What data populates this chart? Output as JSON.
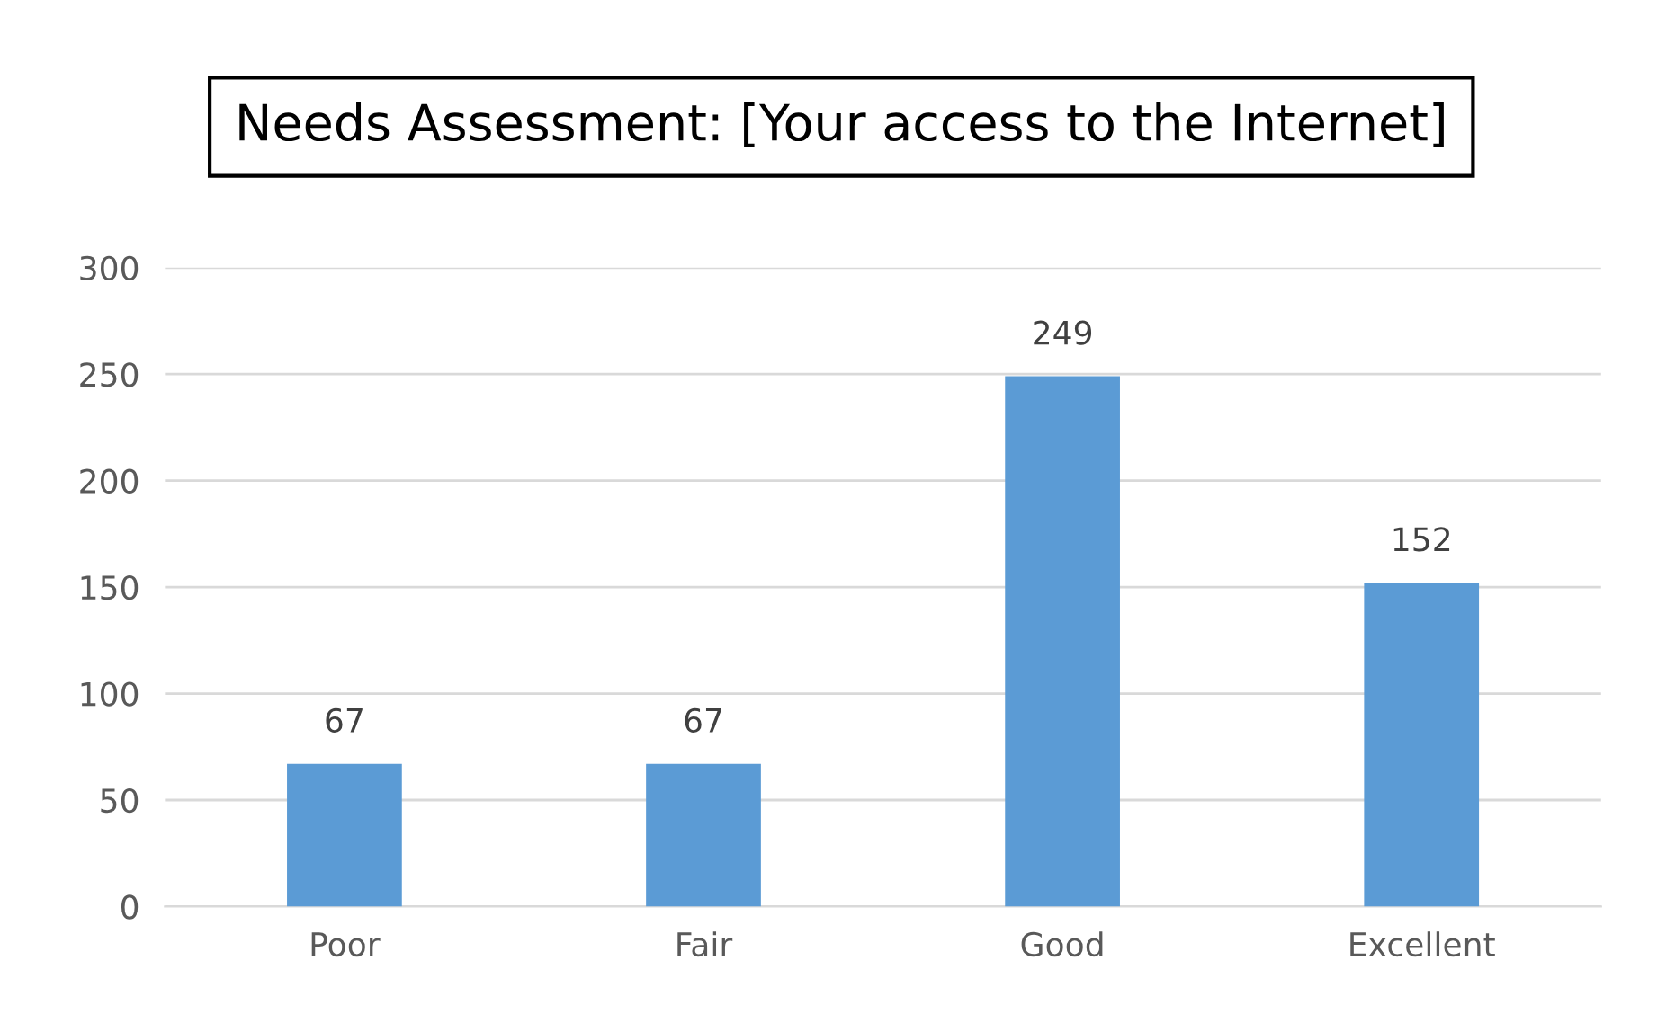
{
  "chart_data": {
    "type": "bar",
    "title": "Needs Assessment: [Your access to the Internet]",
    "categories": [
      "Poor",
      "Fair",
      "Good",
      "Excellent"
    ],
    "values": [
      67,
      67,
      249,
      152
    ],
    "color": "#5b9bd5",
    "ylim": [
      0,
      300
    ],
    "yticks": [
      0,
      50,
      100,
      150,
      200,
      250,
      300
    ],
    "grid": "y",
    "data_labels": true
  }
}
